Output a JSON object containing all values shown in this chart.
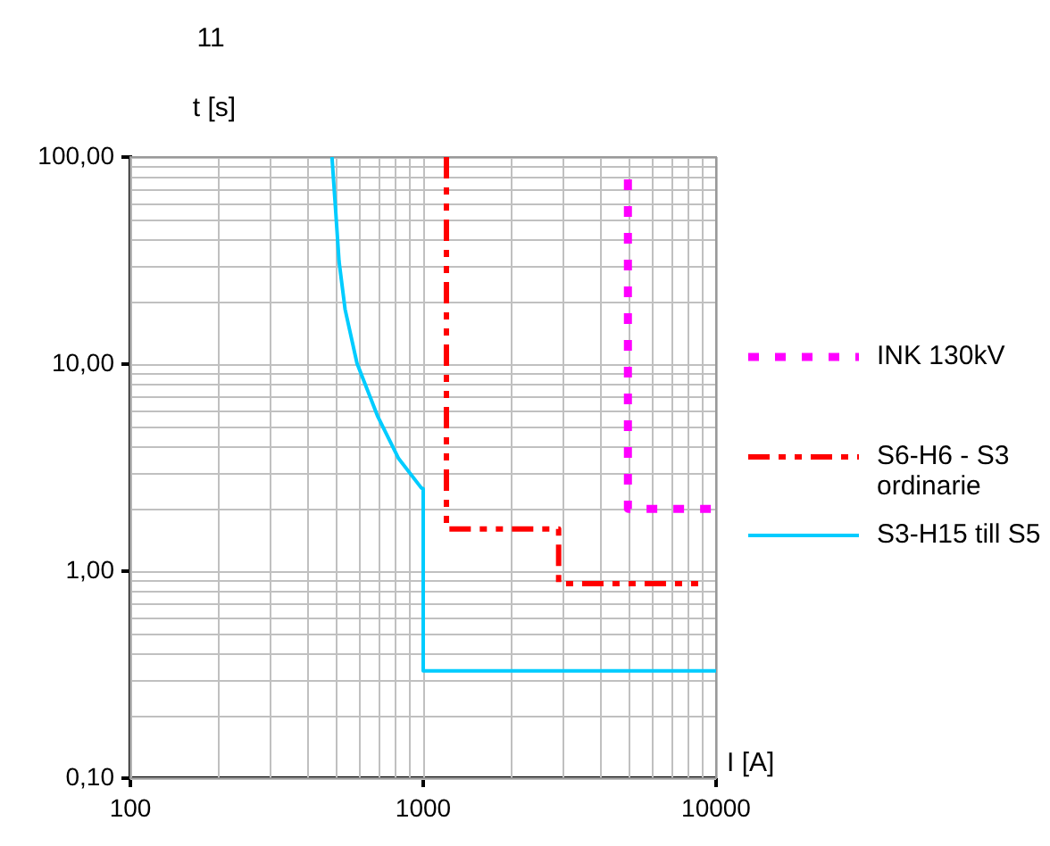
{
  "chart_data": {
    "type": "line",
    "title": "11",
    "xlabel": "I [A]",
    "ylabel": "t [s]",
    "log": "xy",
    "grid": true,
    "legend": "right",
    "marker": "none",
    "xlim": [
      100,
      10000
    ],
    "xticks": [
      100,
      1000,
      10000
    ],
    "ylim": [
      0.1,
      100
    ],
    "yticks": [
      {
        "value": 0.1,
        "label": "0,10"
      },
      {
        "value": 1,
        "label": "1,00"
      },
      {
        "value": 10,
        "label": "10,00"
      },
      {
        "value": 100,
        "label": "100,00"
      }
    ],
    "series": [
      {
        "name": "INK 130kV",
        "color": "#ff00ff",
        "line_style": "dotted",
        "x": [
          5000,
          5000,
          10000
        ],
        "values": [
          78,
          2.0,
          2.0
        ]
      },
      {
        "name": "S6-H6 - S3 ordinarie",
        "color": "#ff0000",
        "line_style": "dashed",
        "x": [
          1200,
          1200,
          2900,
          2900,
          9000
        ],
        "values": [
          100,
          1.6,
          1.6,
          0.87,
          0.87
        ]
      },
      {
        "name": "S3-H15 till S5",
        "color": "#00ccff",
        "line_style": "solid",
        "x": [
          488,
          500,
          516,
          541,
          594,
          700,
          824,
          986,
          1000,
          1000,
          10000
        ],
        "values": [
          100,
          60.8,
          31.3,
          18.4,
          10.1,
          5.57,
          3.5,
          2.52,
          2.5,
          0.33,
          0.33
        ]
      }
    ]
  }
}
